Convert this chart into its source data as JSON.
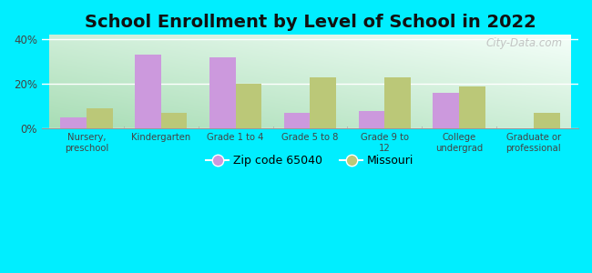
{
  "title": "School Enrollment by Level of School in 2022",
  "categories": [
    "Nursery,\npreschool",
    "Kindergarten",
    "Grade 1 to 4",
    "Grade 5 to 8",
    "Grade 9 to\n12",
    "College\nundergrad",
    "Graduate or\nprofessional"
  ],
  "zip_values": [
    5,
    33,
    32,
    7,
    8,
    16,
    0
  ],
  "mo_values": [
    9,
    7,
    20,
    23,
    23,
    19,
    7
  ],
  "zip_color": "#cc99dd",
  "mo_color": "#bbc878",
  "bg_outer": "#00eeff",
  "ylim": [
    0,
    42
  ],
  "yticks": [
    0,
    20,
    40
  ],
  "ytick_labels": [
    "0%",
    "20%",
    "40%"
  ],
  "title_fontsize": 14,
  "legend_labels": [
    "Zip code 65040",
    "Missouri"
  ],
  "watermark": "City-Data.com",
  "grad_bottom_left": "#a8ddb5",
  "grad_top_right": "#f5fffa"
}
